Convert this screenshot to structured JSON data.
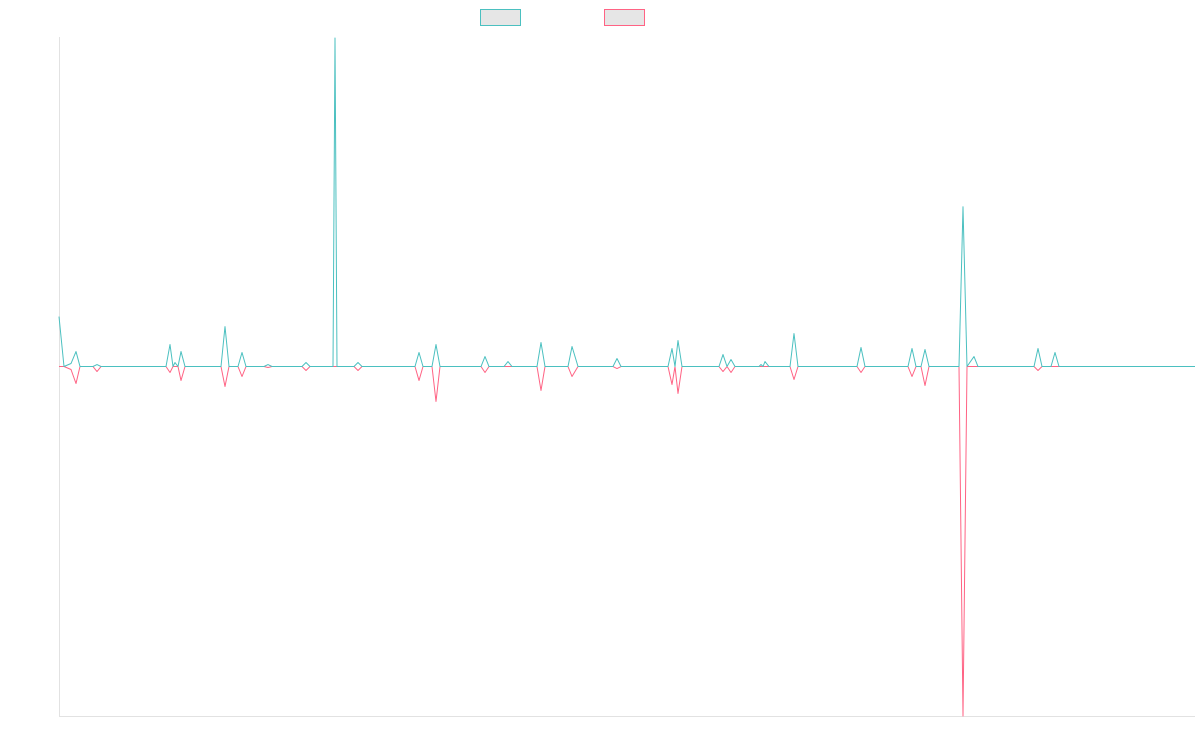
{
  "chart_data": {
    "type": "line",
    "xlim": [
      0,
      1136
    ],
    "ylim": [
      -350,
      330
    ],
    "legend": "top",
    "x": [
      0,
      5,
      12,
      17,
      21,
      34,
      38,
      42,
      107,
      111,
      114,
      116,
      119,
      122,
      126,
      162,
      166,
      170,
      179,
      183,
      187,
      205,
      209,
      213,
      243,
      247,
      251,
      274,
      276,
      278,
      295,
      299,
      303,
      356,
      360,
      364,
      373,
      377,
      381,
      422,
      426,
      430,
      445,
      449,
      453,
      478,
      482,
      486,
      509,
      513,
      519,
      554,
      558,
      562,
      609,
      613,
      616,
      619,
      623,
      660,
      664,
      668,
      672,
      676,
      700,
      702,
      704,
      706,
      710,
      731,
      735,
      739,
      798,
      802,
      806,
      849,
      853,
      857,
      862,
      866,
      870,
      900,
      904,
      908,
      915,
      919,
      975,
      979,
      983,
      992,
      996,
      1000,
      1136
    ],
    "series": [
      {
        "color": "#4bc0c0",
        "values": [
          50,
          0,
          3,
          15,
          0,
          0,
          2,
          0,
          0,
          22,
          0,
          4,
          0,
          15,
          0,
          0,
          40,
          0,
          0,
          14,
          0,
          0,
          2,
          0,
          0,
          4,
          0,
          0,
          329,
          0,
          0,
          4,
          0,
          0,
          14,
          0,
          0,
          22,
          0,
          0,
          10,
          0,
          0,
          5,
          0,
          0,
          24,
          0,
          0,
          20,
          0,
          0,
          8,
          0,
          0,
          18,
          0,
          26,
          0,
          0,
          12,
          0,
          7,
          0,
          0,
          2,
          0,
          5,
          0,
          0,
          33,
          0,
          0,
          19,
          0,
          0,
          18,
          0,
          0,
          17,
          0,
          0,
          160,
          0,
          10,
          0,
          0,
          18,
          0,
          0,
          14,
          0,
          0
        ]
      },
      {
        "color": "#ff6384",
        "values": [
          0,
          0,
          -3,
          -17,
          0,
          0,
          -5,
          0,
          0,
          -6,
          0,
          0,
          0,
          -14,
          0,
          0,
          -20,
          0,
          0,
          -10,
          0,
          0,
          -1,
          0,
          0,
          -4,
          0,
          0,
          0,
          0,
          0,
          -4,
          0,
          0,
          -14,
          0,
          0,
          -35,
          0,
          0,
          -6,
          0,
          0,
          0,
          0,
          0,
          -24,
          0,
          0,
          -10,
          0,
          0,
          -2,
          0,
          0,
          -18,
          0,
          -27,
          0,
          0,
          -5,
          0,
          -6,
          0,
          0,
          0,
          0,
          0,
          0,
          0,
          -13,
          0,
          0,
          -6,
          0,
          0,
          -10,
          0,
          0,
          -19,
          0,
          0,
          -350,
          0,
          0,
          0,
          0,
          -4,
          0,
          0,
          0,
          0,
          0
        ]
      }
    ]
  }
}
